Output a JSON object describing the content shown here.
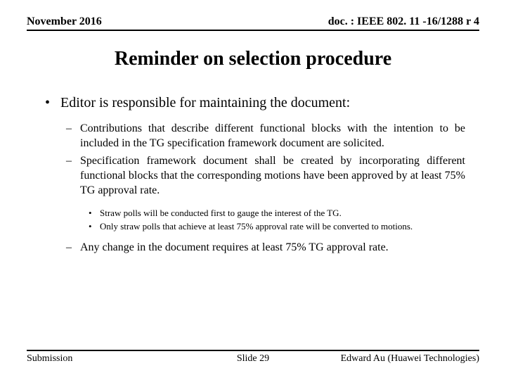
{
  "header": {
    "left": "November 2016",
    "right": "doc. : IEEE 802. 11 -16/1288 r 4"
  },
  "title": "Reminder on selection procedure",
  "content": {
    "l1": "Editor is responsible for maintaining the document:",
    "l2a": "Contributions that describe different functional blocks with the intention to be included in the TG specification framework document are solicited.",
    "l2b": "Specification framework document shall be created by incorporating different functional blocks that the corresponding motions have been approved by at least 75% TG approval rate.",
    "l3a": "Straw polls will be conducted first to gauge the interest of the TG.",
    "l3b": "Only straw polls that achieve at least 75% approval rate will be converted to motions.",
    "l2c": "Any change in the document requires at least 75% TG approval rate."
  },
  "footer": {
    "left": "Submission",
    "center": "Slide 29",
    "right": "Edward Au (Huawei Technologies)"
  }
}
